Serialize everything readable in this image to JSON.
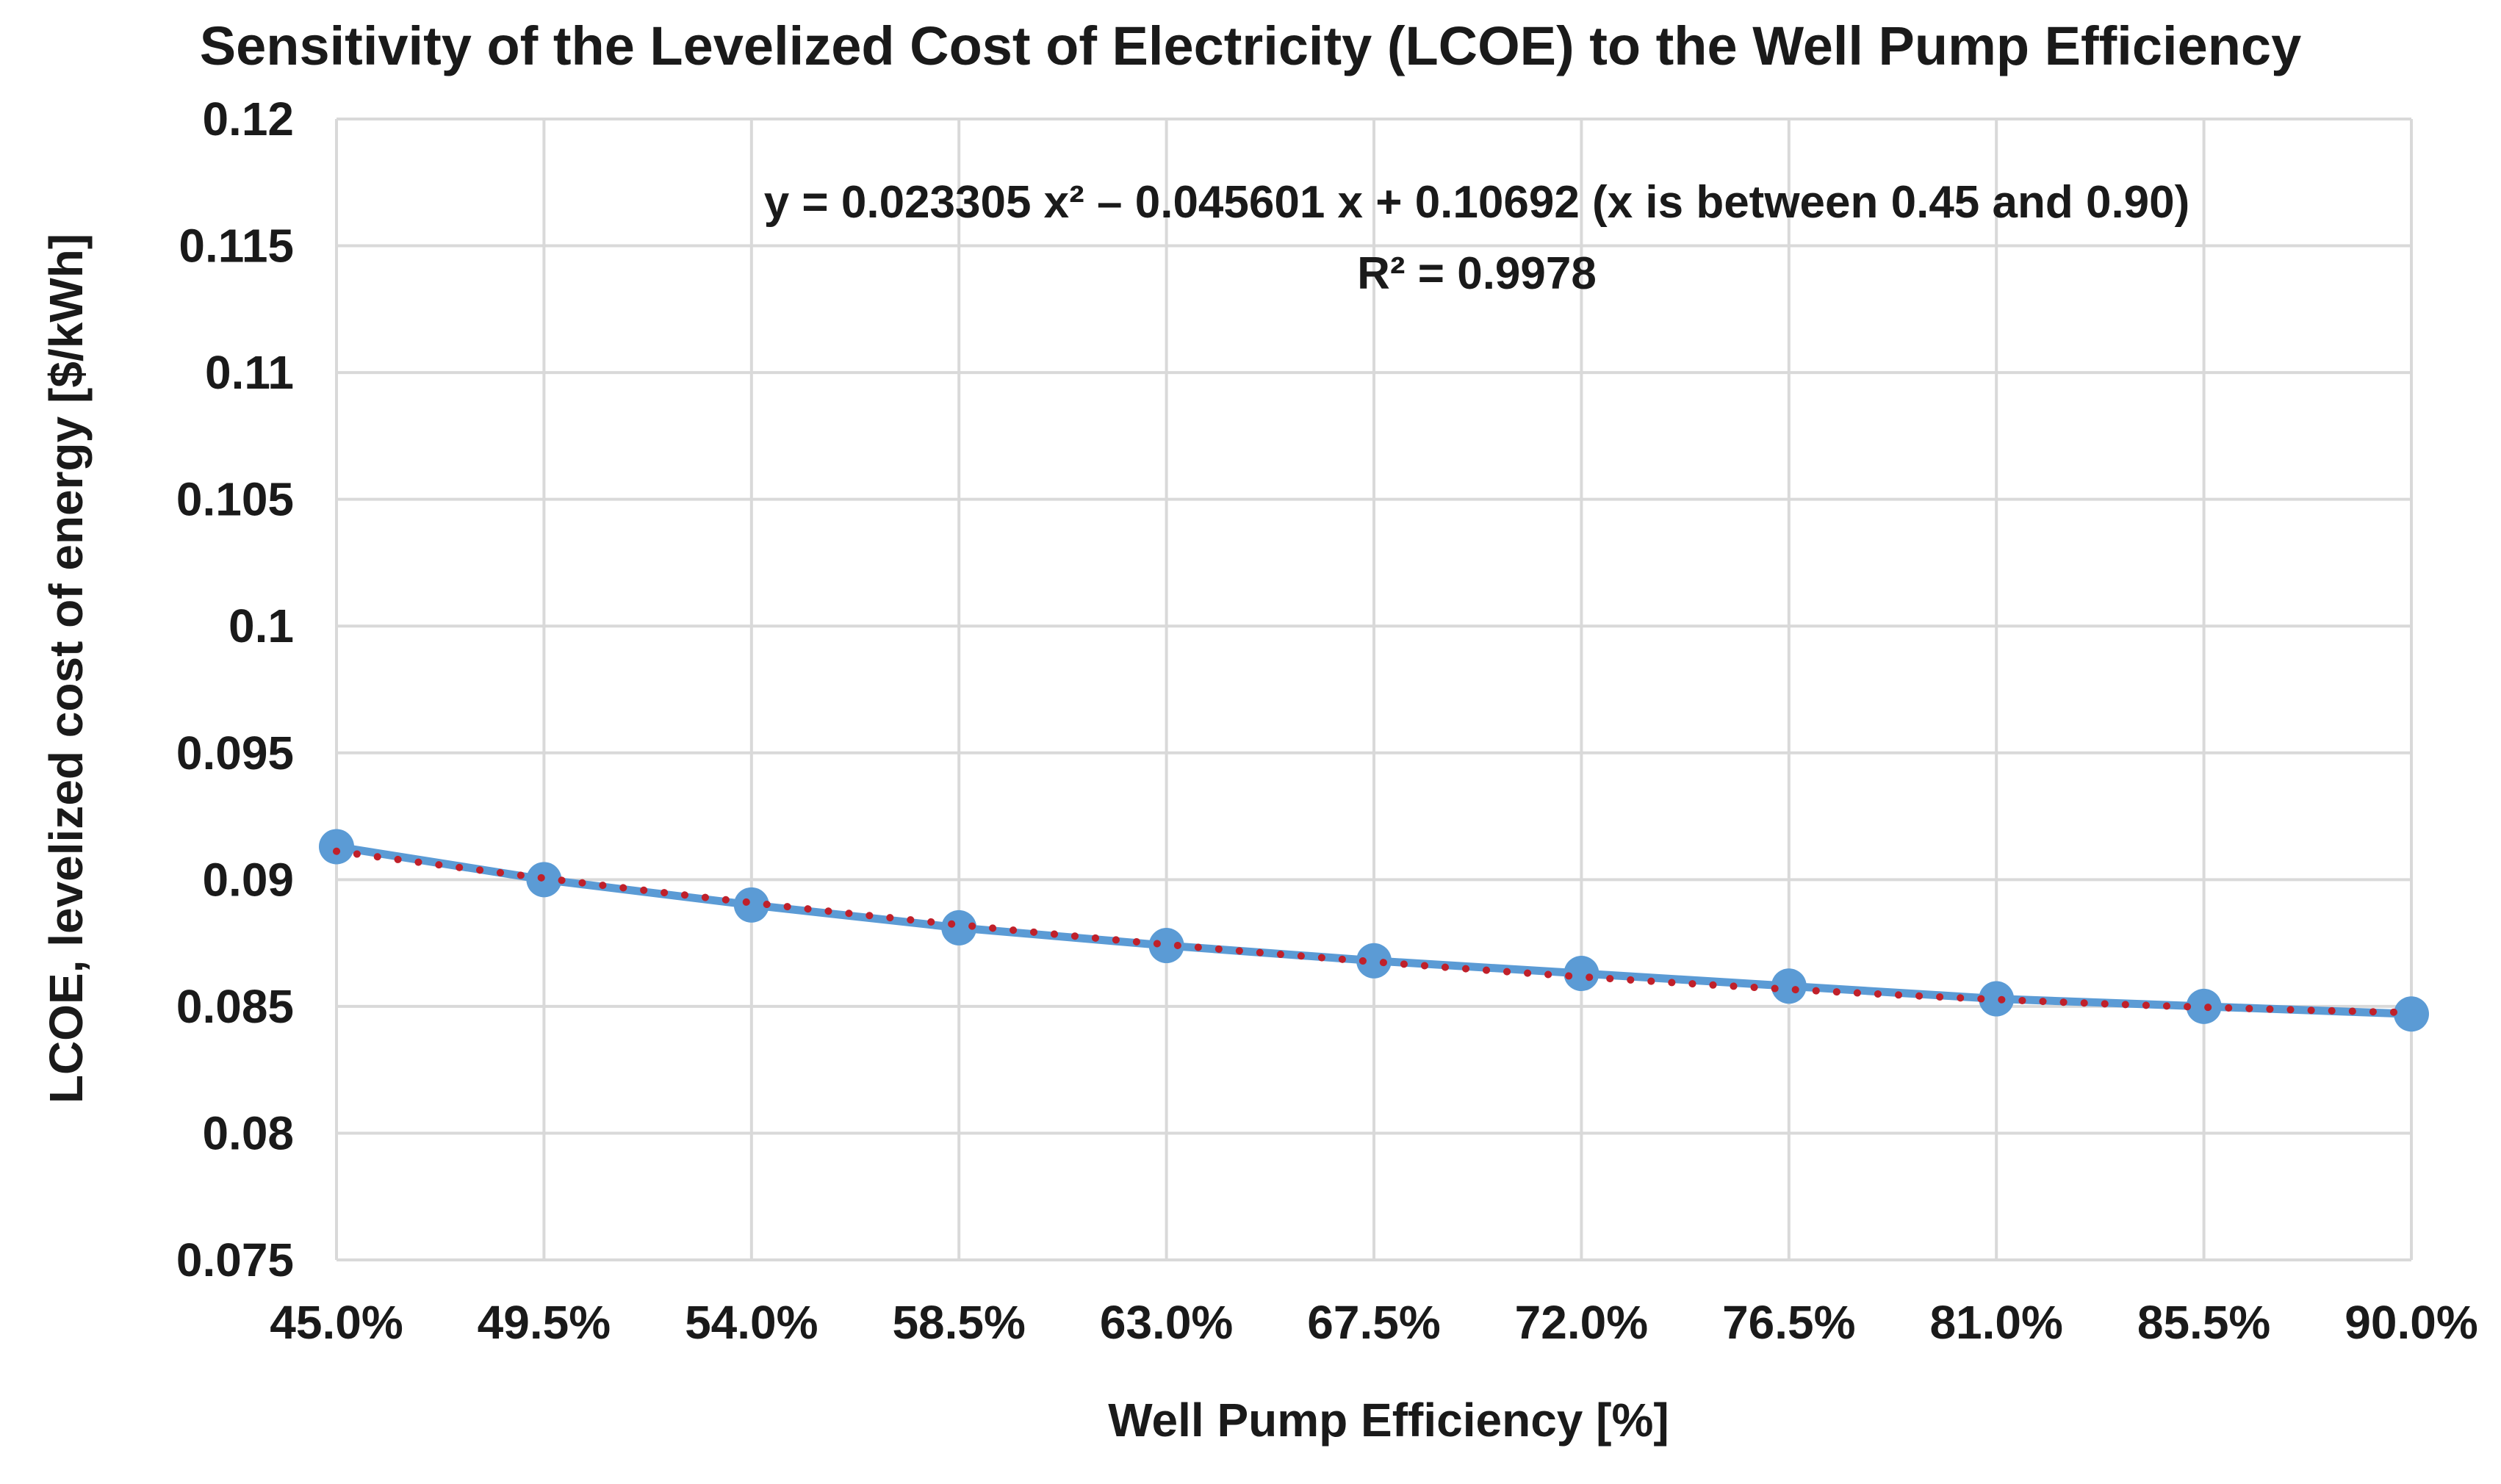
{
  "chart_data": {
    "type": "line",
    "title": "Sensitivity of the Levelized Cost of Electricity (LCOE) to the Well Pump Efficiency",
    "xlabel": "Well Pump Efficiency [%]",
    "ylabel": "LCOE, levelized cost of energy [$/kWh]",
    "x_tick_labels": [
      "45.0%",
      "49.5%",
      "54.0%",
      "58.5%",
      "63.0%",
      "67.5%",
      "72.0%",
      "76.5%",
      "81.0%",
      "85.5%",
      "90.0%"
    ],
    "y_tick_labels": [
      "0.075",
      "0.08",
      "0.085",
      "0.09",
      "0.095",
      "0.1",
      "0.105",
      "0.11",
      "0.115",
      "0.12"
    ],
    "ylim": [
      0.075,
      0.12
    ],
    "xlim": [
      0.45,
      0.9
    ],
    "grid": true,
    "legend": "none",
    "series": [
      {
        "x": [
          0.45,
          0.495,
          0.54,
          0.585,
          0.63,
          0.675,
          0.72,
          0.765,
          0.81,
          0.855,
          0.9
        ],
        "values": [
          0.0913,
          0.09,
          0.089,
          0.0881,
          0.0874,
          0.0868,
          0.0863,
          0.0858,
          0.0853,
          0.085,
          0.0847
        ],
        "color": "#5b9bd5",
        "marker": "circle"
      }
    ],
    "trendline": {
      "type": "polynomial",
      "order": 2,
      "coefficients": [
        0.023305,
        -0.045601,
        0.10692
      ],
      "color": "#c0202a",
      "style": "dotted"
    },
    "annotation": {
      "equation": "y = 0.023305 x² – 0.045601 x + 0.10692 (x is between 0.45 and 0.90)",
      "r_squared": "R² = 0.9978"
    }
  }
}
